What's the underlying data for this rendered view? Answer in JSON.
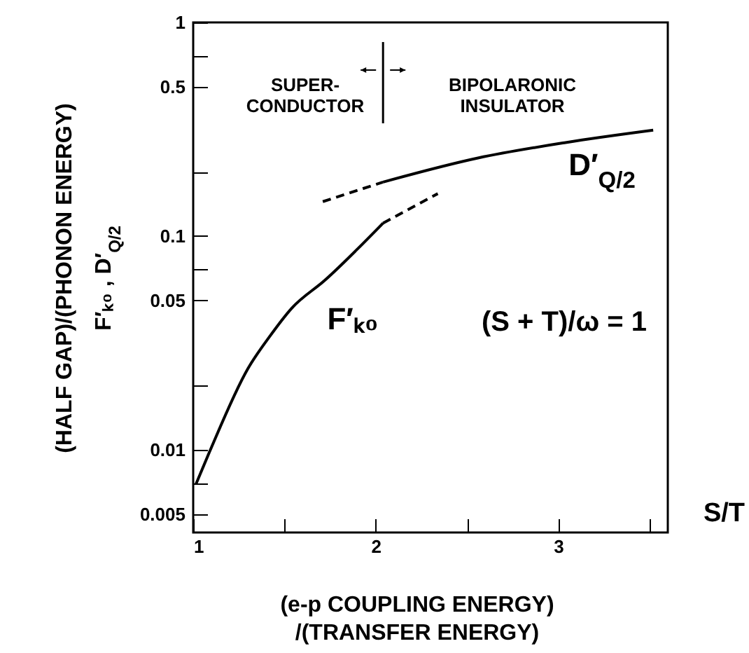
{
  "chart_data": {
    "type": "line",
    "xlabel": "(e-p COUPLING ENERGY)\n/(TRANSFER ENERGY)",
    "ylabel": "(HALF GAP)/(PHONON ENERGY)\nF′ₖ₀ , D′$_{Q/2}$",
    "xlim": [
      1,
      3.6
    ],
    "ylim": [
      0.0041,
      1
    ],
    "xticks": [
      1,
      {
        "value": 1.5,
        "label": null
      },
      2,
      {
        "value": 2.5,
        "label": null
      },
      3,
      {
        "value": 3.5,
        "label": null
      }
    ],
    "yticks": [
      {
        "value": 0.005,
        "label": "0.005"
      },
      {
        "value": 0.007,
        "label": null
      },
      {
        "value": 0.01,
        "label": "0.01"
      },
      {
        "value": 0.02,
        "label": null
      },
      {
        "value": 0.05,
        "label": "0.05"
      },
      {
        "value": 0.07,
        "label": null
      },
      {
        "value": 0.1,
        "label": "0.1"
      },
      {
        "value": 0.2,
        "label": null
      },
      {
        "value": 0.5,
        "label": "0.5"
      },
      {
        "value": 0.7,
        "label": null
      },
      1
    ],
    "log": "y",
    "grid": false,
    "marker": "none",
    "series": [
      {
        "color": "#000000",
        "line_style": "solid",
        "x": [
          1.015,
          1.09,
          1.3,
          1.42,
          1.54,
          1.72,
          2.04
        ],
        "values": [
          0.0069,
          0.0098,
          0.024,
          0.034,
          0.046,
          0.062,
          0.115
        ]
      },
      {
        "color": "#000000",
        "line_style": "dashed",
        "x": [
          2.04,
          2.34
        ],
        "values": [
          0.115,
          0.158
        ]
      },
      {
        "color": "#000000",
        "line_style": "dashed",
        "x": [
          1.71,
          2.04
        ],
        "values": [
          0.145,
          0.179
        ]
      },
      {
        "color": "#000000",
        "line_style": "solid",
        "x": [
          2.04,
          2.56,
          3.04,
          3.52
        ],
        "values": [
          0.179,
          0.232,
          0.274,
          0.313
        ]
      }
    ],
    "ref_lines": [
      {
        "axis": "x",
        "value": 2.04,
        "color": "#000000",
        "line_style": "solid"
      }
    ],
    "annotations": [
      "F′ₖ₀",
      "D′$_{Q/2}$",
      "SUPER-\nCONDUCTOR",
      "BIPOLARONIC\nINSULATOR",
      "(S + T)/ω = 1",
      "S/T"
    ]
  }
}
